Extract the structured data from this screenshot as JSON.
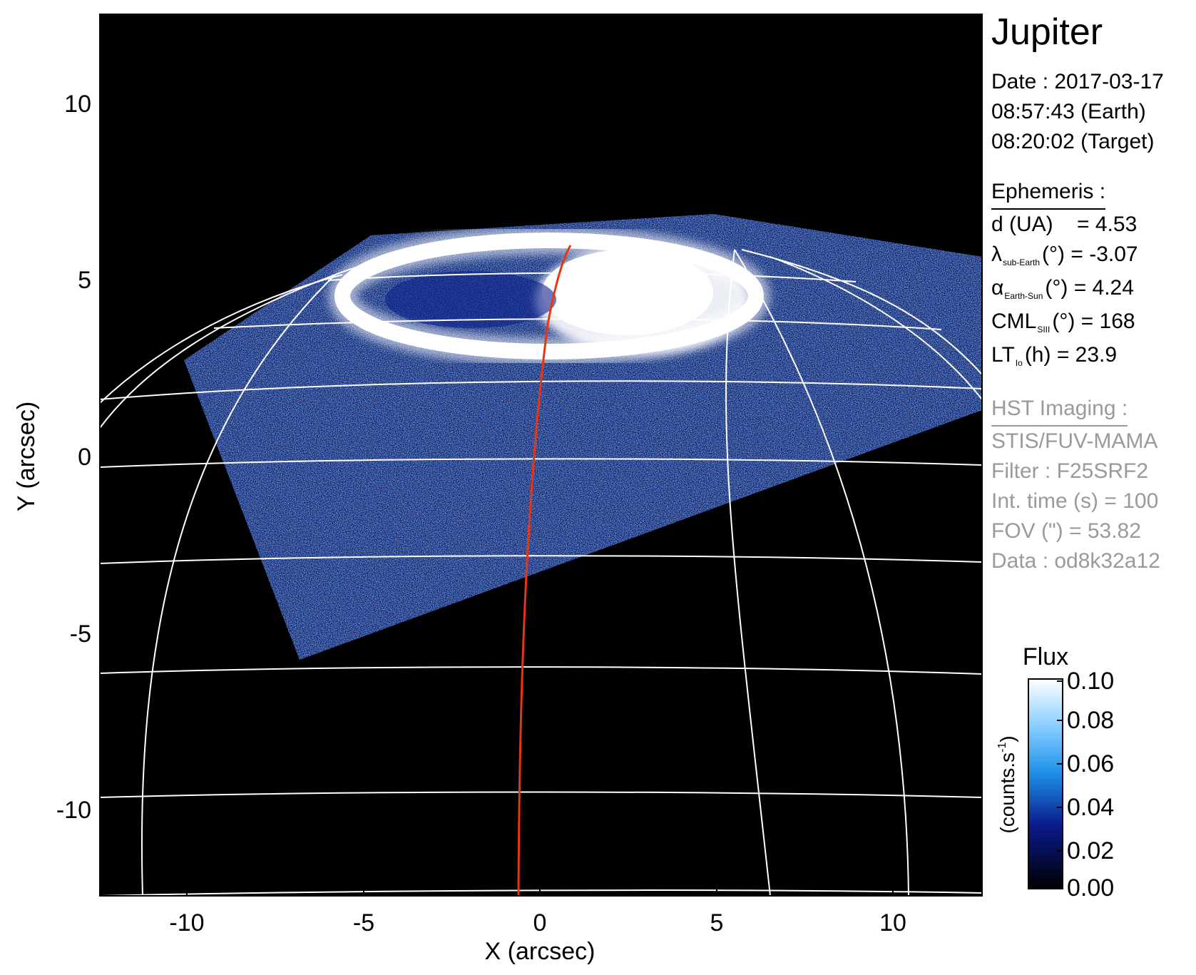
{
  "figure": {
    "x_ticks": [
      "-10",
      "-5",
      "0",
      "5",
      "10"
    ],
    "y_ticks": [
      "10",
      "5",
      "0",
      "-5",
      "-10"
    ],
    "x_label": "X (arcsec)",
    "y_label": "Y (arcsec)"
  },
  "info": {
    "planet": "Jupiter",
    "date_line": "Date : 2017-03-17",
    "time_earth": "08:57:43 (Earth)",
    "time_target": "08:20:02 (Target)",
    "ephemeris_head": "Ephemeris :",
    "d_label": "d (UA)",
    "d_value": "= 4.53",
    "lambda_symbol": "λ",
    "lambda_sub": "sub-Earth",
    "lambda_rest": "(°) = -3.07",
    "alpha_symbol": "α",
    "alpha_sub": "Earth-Sun",
    "alpha_rest": "(°) = 4.24",
    "cml_symbol": "CML",
    "cml_sub": "SIII",
    "cml_rest": "(°) = 168",
    "lt_symbol": "LT",
    "lt_sub": "Io",
    "lt_rest": "(h) = 23.9",
    "hst_head": "HST Imaging :",
    "instrument": "STIS/FUV-MAMA",
    "filter": "Filter : F25SRF2",
    "int_time": "Int. time (s) = 100",
    "fov": "FOV (\") = 53.82",
    "data_id": "Data : od8k32a12"
  },
  "colorbar": {
    "title": "Flux",
    "unit": "(counts.s",
    "unit_sup": "-1",
    "unit_close": ")",
    "ticks": [
      "0.10",
      "0.08",
      "0.06",
      "0.04",
      "0.02",
      "0.00"
    ]
  },
  "colors": {
    "background": "#000000",
    "grid": "#ffffff",
    "track": "#e8360f",
    "cmap_top": "#ffffff",
    "cmap_mid": "#1e8fe6",
    "cmap_low": "#0a1a8c",
    "cmap_bottom": "#000000"
  }
}
